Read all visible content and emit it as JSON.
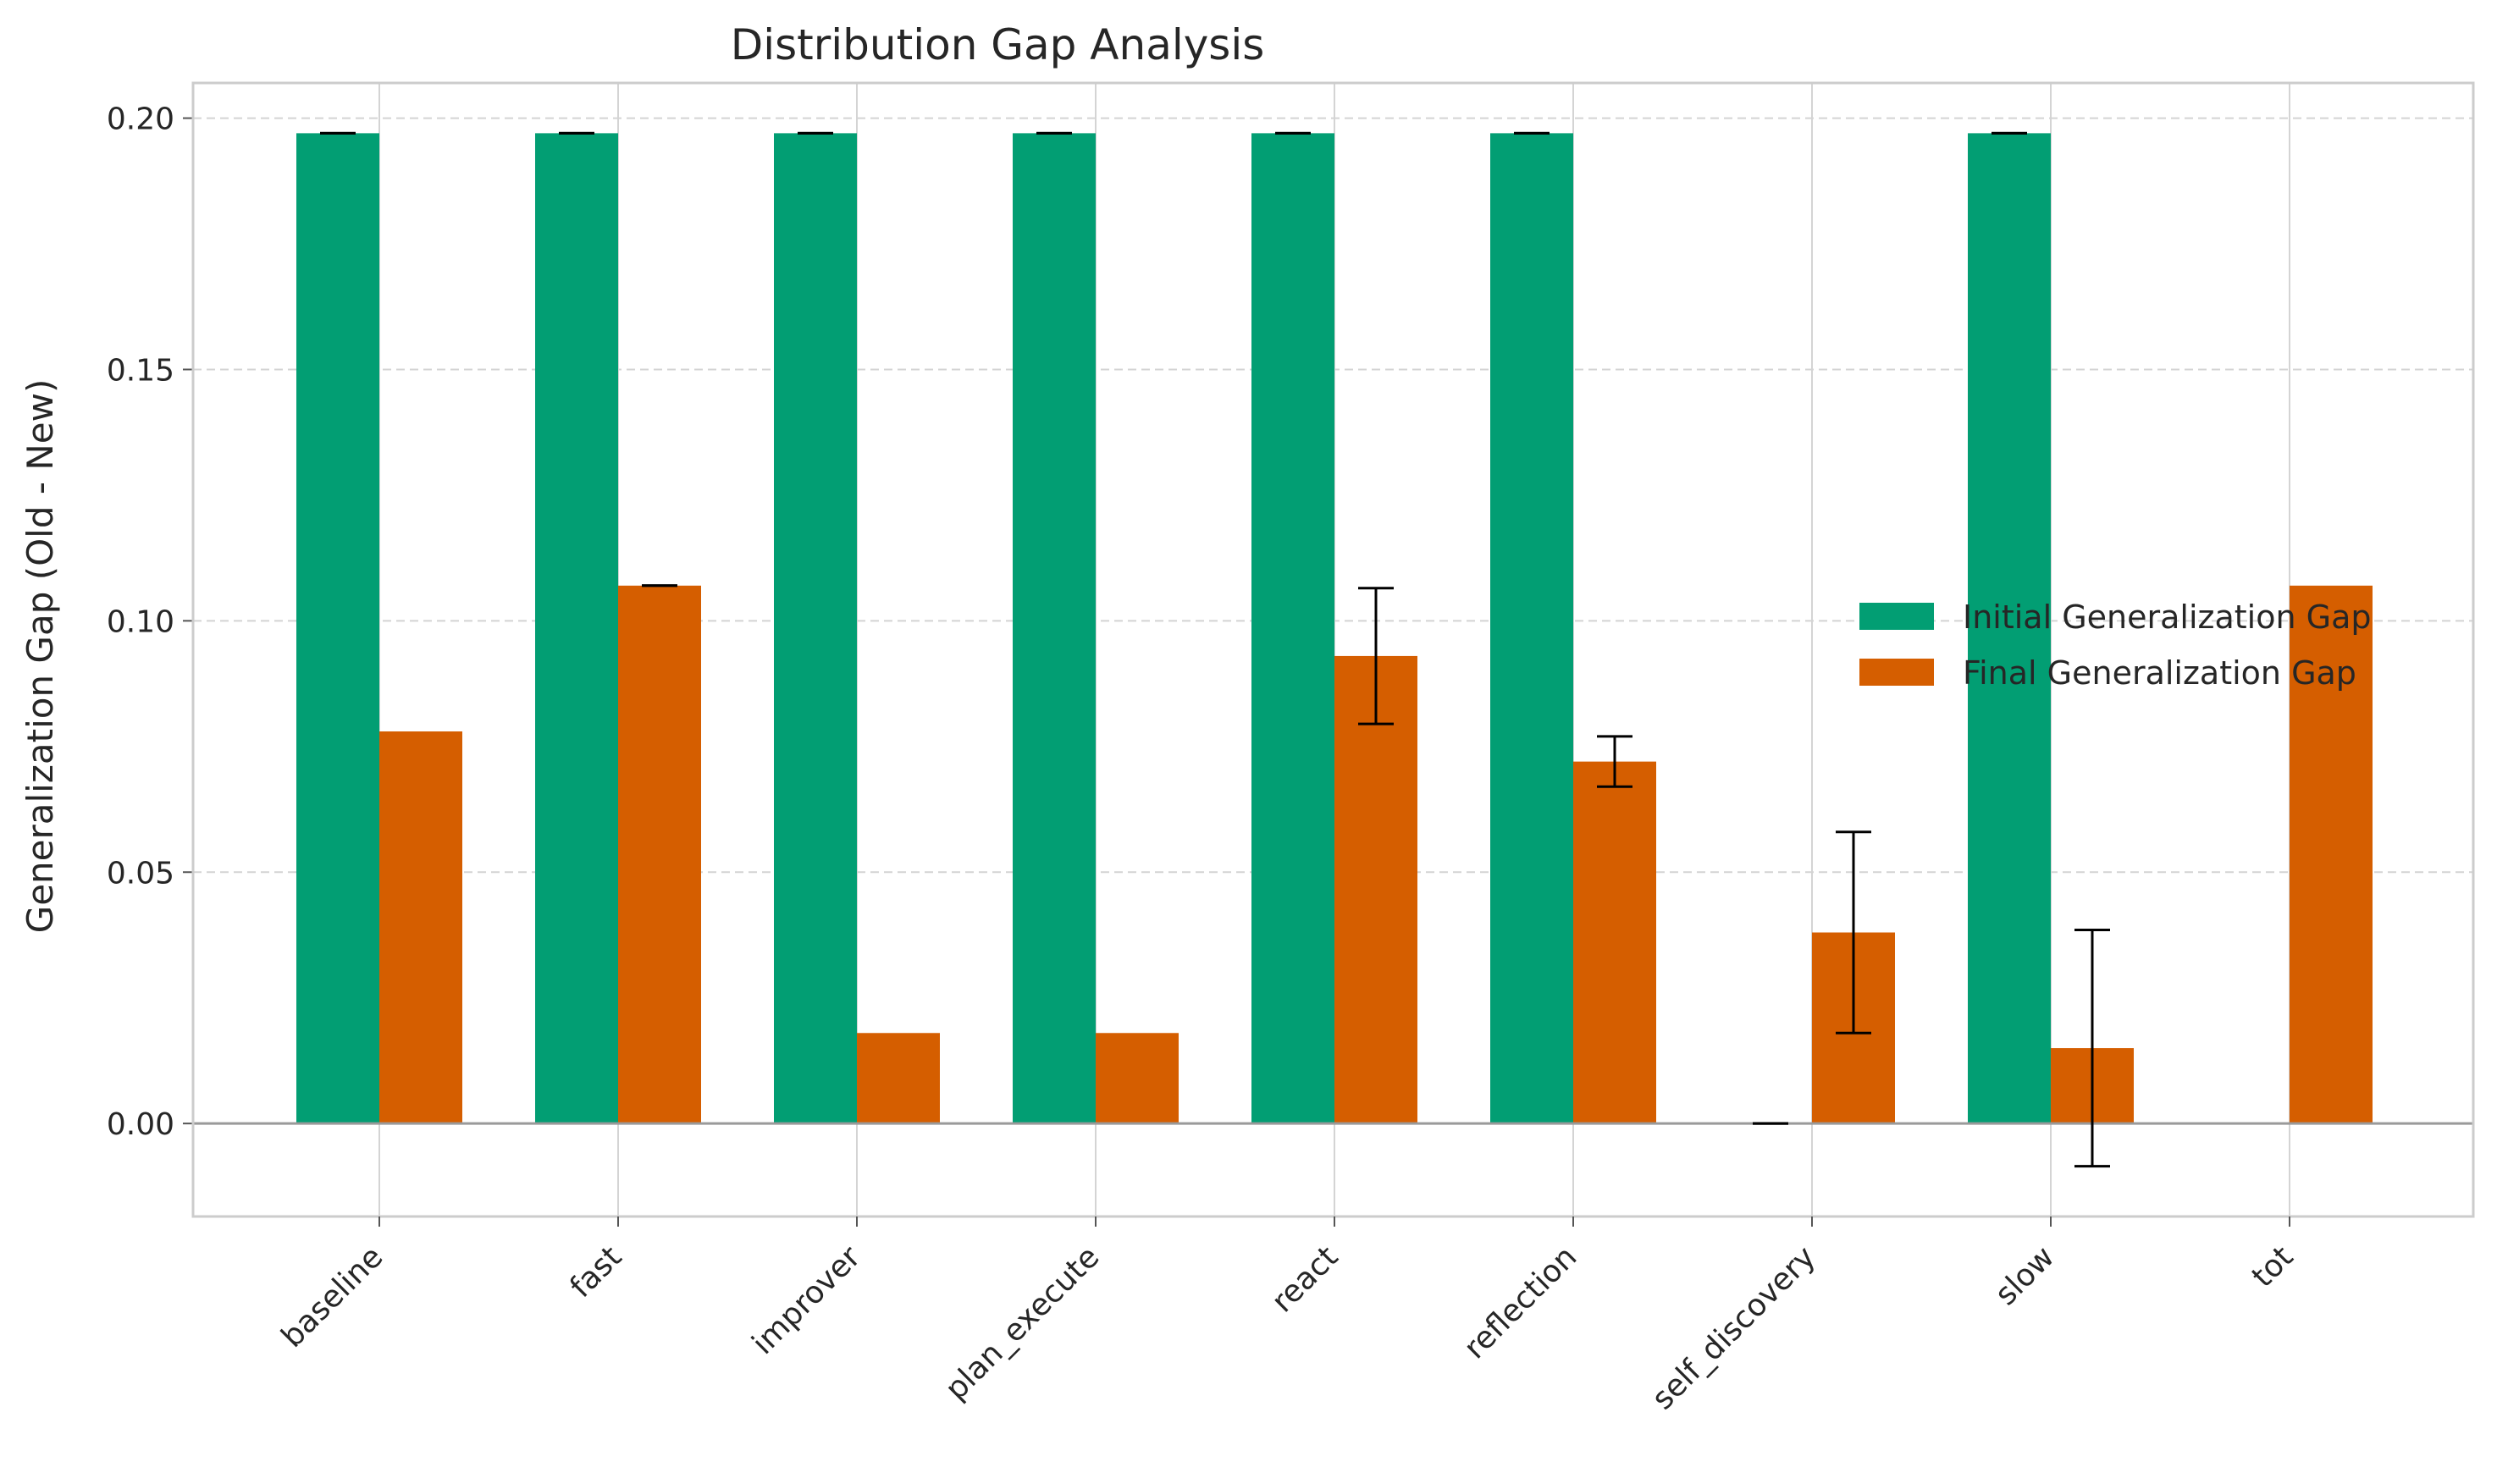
{
  "chart_data": {
    "type": "bar",
    "title": "Distribution Gap Analysis",
    "xlabel": "",
    "ylabel": "Generalization Gap (Old - New)",
    "categories": [
      "baseline",
      "fast",
      "improver",
      "plan_execute",
      "react",
      "reflection",
      "self_discovery",
      "slow",
      "tot"
    ],
    "ylim": [
      -0.0185,
      0.207
    ],
    "yticks": [
      0.0,
      0.05,
      0.1,
      0.15,
      0.2
    ],
    "ytick_labels": [
      "0.00",
      "0.05",
      "0.10",
      "0.15",
      "0.20"
    ],
    "grid": true,
    "legend_position": "center-right",
    "zero_line": true,
    "series": [
      {
        "name": "Initial Generalization Gap",
        "color": "#029e73",
        "values": [
          0.197,
          0.197,
          0.197,
          0.197,
          0.197,
          0.197,
          0.0,
          0.197,
          null
        ],
        "errors": [
          0.0,
          0.0,
          0.0,
          0.0,
          0.0,
          0.0,
          0.0,
          0.0,
          null
        ]
      },
      {
        "name": "Final Generalization Gap",
        "color": "#d55e00",
        "values": [
          0.078,
          0.107,
          0.018,
          0.018,
          0.093,
          0.072,
          0.038,
          0.015,
          0.107
        ],
        "errors": [
          null,
          0.0,
          null,
          null,
          0.0135,
          0.005,
          0.02,
          0.0235,
          null
        ]
      }
    ]
  }
}
